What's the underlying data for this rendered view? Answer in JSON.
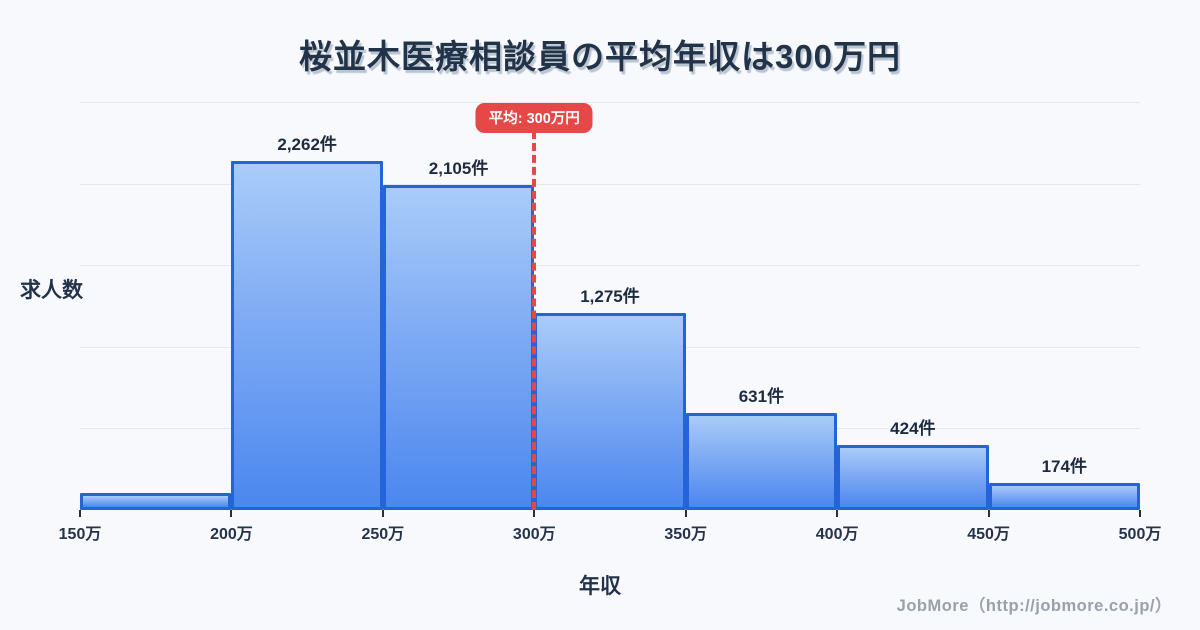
{
  "title": "桜並木医療相談員の平均年収は300万円",
  "ylabel": "求人数",
  "xlabel": "年収",
  "footer": "JobMore（http://jobmore.co.jp/）",
  "average_badge": "平均: 300万円",
  "colors": {
    "background": "#f7f9fc",
    "bar_fill_top": "#a9ccf8",
    "bar_fill_bottom": "#4b87ef",
    "bar_border": "#2563d9",
    "gridline": "#e4e8f0",
    "heading_text": "#223349",
    "average_red": "#e64848",
    "footer_gray": "#9aa1ab"
  },
  "chart_data": {
    "type": "bar",
    "title": "桜並木医療相談員の平均年収は300万円",
    "xlabel": "年収",
    "ylabel": "求人数",
    "x_tick_labels": [
      "150万",
      "200万",
      "250万",
      "300万",
      "350万",
      "400万",
      "450万",
      "500万"
    ],
    "bins": [
      {
        "range": "150万-200万",
        "value": 110,
        "label": ""
      },
      {
        "range": "200万-250万",
        "value": 2262,
        "label": "2,262件"
      },
      {
        "range": "250万-300万",
        "value": 2105,
        "label": "2,105件"
      },
      {
        "range": "300万-350万",
        "value": 1275,
        "label": "1,275件"
      },
      {
        "range": "350万-400万",
        "value": 631,
        "label": "631件"
      },
      {
        "range": "400万-450万",
        "value": 424,
        "label": "424件"
      },
      {
        "range": "450万-500万",
        "value": 174,
        "label": "174件"
      }
    ],
    "average_line": {
      "x": "300万",
      "label": "平均: 300万円"
    },
    "ylim": [
      0,
      2650
    ],
    "grid": "horizontal",
    "legend": "none"
  }
}
